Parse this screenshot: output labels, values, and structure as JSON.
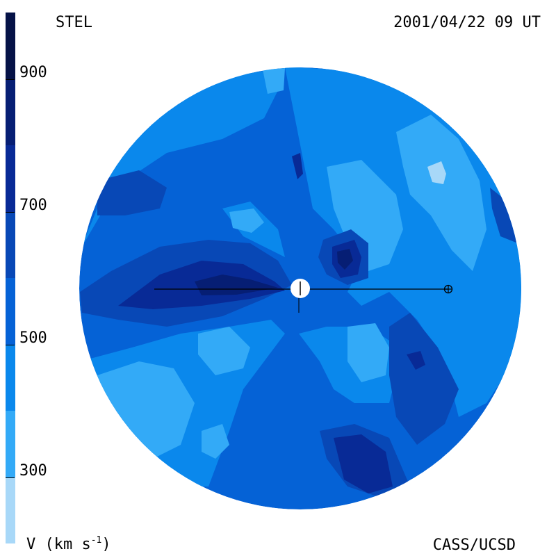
{
  "header": {
    "source": "STEL",
    "timestamp": "2001/04/22 09 UT"
  },
  "footer": {
    "credit": "CASS/UCSD",
    "unit_prefix": "V (km s",
    "unit_exponent": "-1",
    "unit_suffix": ")"
  },
  "colorbar": {
    "ticks": [
      {
        "value": 900,
        "label": "900"
      },
      {
        "value": 700,
        "label": "700"
      },
      {
        "value": 500,
        "label": "500"
      },
      {
        "value": 300,
        "label": "300"
      }
    ],
    "levels": [
      {
        "min": 200,
        "max": 300,
        "color": "#a8d8f8"
      },
      {
        "min": 300,
        "max": 400,
        "color": "#33aaf7"
      },
      {
        "min": 400,
        "max": 500,
        "color": "#0a88ec"
      },
      {
        "min": 500,
        "max": 600,
        "color": "#0562d6"
      },
      {
        "min": 600,
        "max": 700,
        "color": "#0848b6"
      },
      {
        "min": 700,
        "max": 800,
        "color": "#082a96"
      },
      {
        "min": 800,
        "max": 900,
        "color": "#061e74"
      },
      {
        "min": 900,
        "max": 1000,
        "color": "#051247"
      }
    ],
    "range": [
      200,
      1000
    ]
  },
  "colors": {
    "sun": "#ffffff",
    "earth_line": "#000000"
  }
}
